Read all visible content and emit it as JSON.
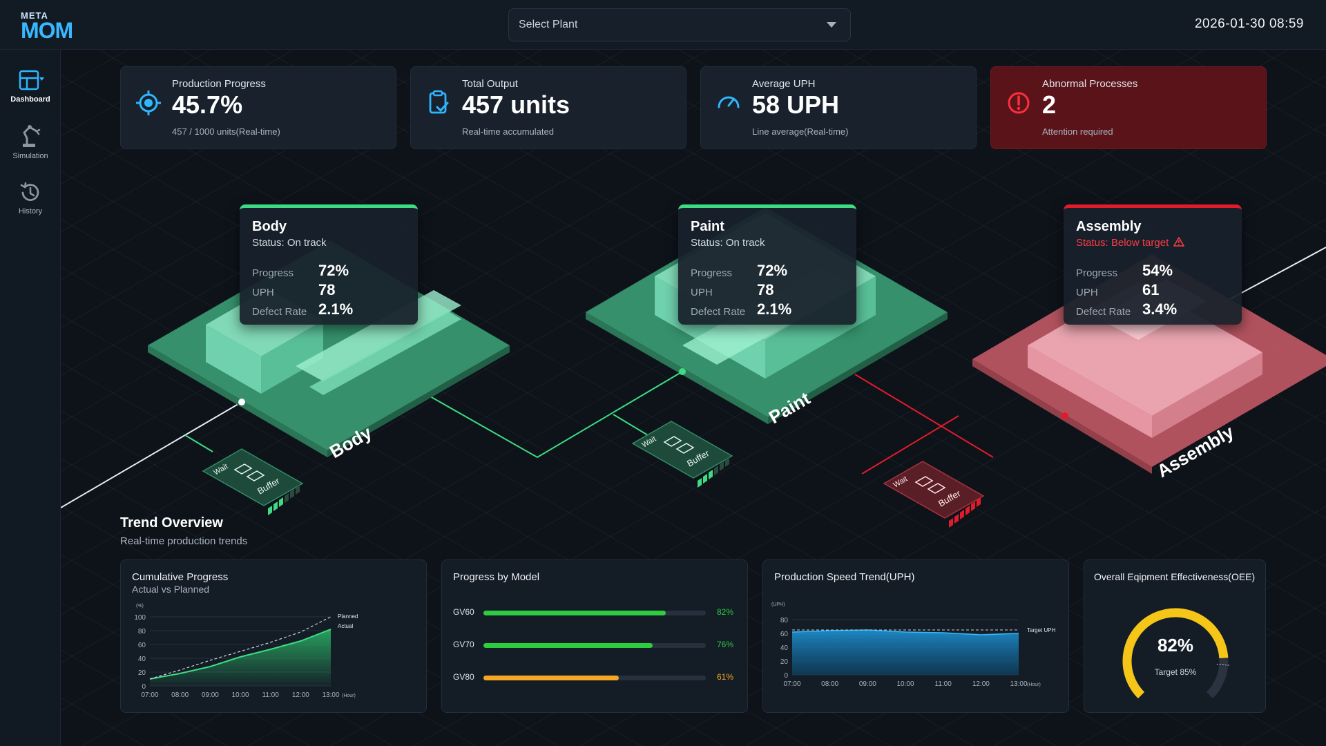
{
  "header": {
    "logo_top": "META",
    "logo_bottom": "MOM",
    "plant_placeholder": "Select Plant",
    "datetime": "2026-01-30  08:59"
  },
  "sidebar": {
    "items": [
      {
        "label": "Dashboard",
        "icon": "dashboard-icon",
        "active": true
      },
      {
        "label": "Simulation",
        "icon": "robot-arm-icon",
        "active": false
      },
      {
        "label": "History",
        "icon": "history-icon",
        "active": false
      }
    ]
  },
  "kpis": [
    {
      "label": "Production Progress",
      "value": "45.7%",
      "sub": "457 / 1000 units(Real-time)",
      "icon": "target-icon"
    },
    {
      "label": "Total Output",
      "value": "457 units",
      "sub": "Real-time accumulated",
      "icon": "clipboard-check-icon"
    },
    {
      "label": "Average UPH",
      "value": "58 UPH",
      "sub": "Line average(Real-time)",
      "icon": "speedometer-icon"
    },
    {
      "label": "Abnormal Processes",
      "value": "2",
      "sub": "Attention required",
      "icon": "alert-circle-icon"
    }
  ],
  "processes": [
    {
      "name": "Body",
      "status": "Status: On track",
      "progress": "72%",
      "uph": "78",
      "defect": "2.1%",
      "floor_label": "Body"
    },
    {
      "name": "Paint",
      "status": "Status: On track",
      "progress": "72%",
      "uph": "78",
      "defect": "2.1%",
      "floor_label": "Paint"
    },
    {
      "name": "Assembly",
      "status": "Status: Below target",
      "progress": "54%",
      "uph": "61",
      "defect": "3.4%",
      "floor_label": "Assembly"
    }
  ],
  "process_labels": {
    "progress": "Progress",
    "uph": "UPH",
    "defect": "Defect Rate"
  },
  "buffers": [
    {
      "wait": "Wait",
      "buffer": "Buffer",
      "level": 0.4
    },
    {
      "wait": "Wait",
      "buffer": "Buffer",
      "level": 0.4
    },
    {
      "wait": "Wait",
      "buffer": "Buffer",
      "level": 1.0
    }
  ],
  "trend": {
    "title": "Trend Overview",
    "subtitle": "Real-time production trends"
  },
  "colors": {
    "green": "#3ddc84",
    "red": "#e21b2b",
    "orange": "#f5a623",
    "blue": "#1e88c8",
    "yellow": "#f5c518"
  },
  "chart_data": [
    {
      "type": "area",
      "title": "Cumulative Progress",
      "subtitle": "Actual vs Planned",
      "ylabel": "(%)",
      "xlabel": "(Hour)",
      "x": [
        "07:00",
        "08:00",
        "09:00",
        "10:00",
        "11:00",
        "12:00",
        "13:00"
      ],
      "ylim": [
        0,
        100
      ],
      "yticks": [
        "100",
        "80",
        "60",
        "40",
        "20",
        "0"
      ],
      "series": [
        {
          "name": "Planned",
          "values": [
            10,
            23,
            37,
            50,
            63,
            78,
            100
          ]
        },
        {
          "name": "Actual",
          "values": [
            10,
            18,
            28,
            42,
            53,
            65,
            82
          ]
        }
      ]
    },
    {
      "type": "bar",
      "title": "Progress by Model",
      "categories": [
        "GV60",
        "GV70",
        "GV80"
      ],
      "values": [
        82,
        76,
        61
      ],
      "labels": [
        "82%",
        "76%",
        "61%"
      ],
      "bar_colors": [
        "#2ecc40",
        "#2ecc40",
        "#f5a623"
      ]
    },
    {
      "type": "area",
      "title": "Production Speed Trend(UPH)",
      "ylabel": "(UPH)",
      "xlabel": "(Hour)",
      "x": [
        "07:00",
        "08:00",
        "09:00",
        "10:00",
        "11:00",
        "12:00",
        "13:00"
      ],
      "ylim": [
        0,
        80
      ],
      "yticks": [
        "80",
        "60",
        "40",
        "20",
        "0"
      ],
      "target_label": "Target UPH",
      "target": 65,
      "series": [
        {
          "values": [
            62,
            64,
            65,
            62,
            61,
            58,
            60
          ]
        }
      ]
    },
    {
      "type": "gauge",
      "title": "Overall Eqipment Effectiveness(OEE)",
      "value": 82,
      "label": "82%",
      "target_label": "Target 85%"
    }
  ]
}
